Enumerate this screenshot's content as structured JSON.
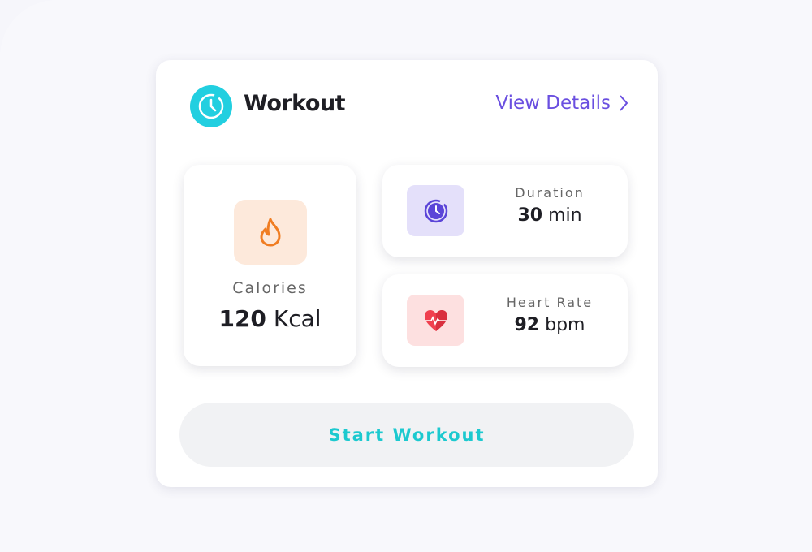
{
  "header": {
    "title": "Workout",
    "link_label": "View Details",
    "icon": "clock-icon"
  },
  "stats": {
    "calories": {
      "label": "Calories",
      "number": "120",
      "unit": "Kcal",
      "icon": "flame-icon",
      "icon_color": "#f07d22",
      "icon_bg": "#fde9db"
    },
    "duration": {
      "label": "Duration",
      "number": "30",
      "unit": "min",
      "icon": "clock-icon",
      "icon_color": "#5b45d8",
      "icon_bg": "#e4e0fa"
    },
    "heart_rate": {
      "label": "Heart Rate",
      "number": "92",
      "unit": "bpm",
      "icon": "heart-pulse-icon",
      "icon_color": "#f0404f",
      "icon_bg": "#fde0e0"
    }
  },
  "actions": {
    "start_label": "Start Workout"
  },
  "colors": {
    "accent": "#22cfe0",
    "link": "#6a4fe0"
  }
}
